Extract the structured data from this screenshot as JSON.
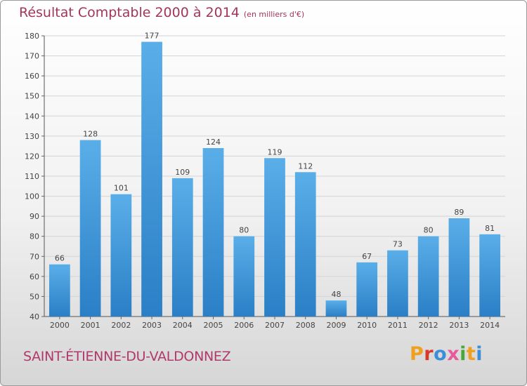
{
  "header": {
    "title": "Résultat Comptable 2000 à 2014",
    "units": "(en milliers d'€)"
  },
  "footer": {
    "place": "SAINT-ÉTIENNE-DU-VALDONNEZ",
    "logo": "Proxiti"
  },
  "colors": {
    "title": "#a3355a",
    "bar_top": "#5aaee8",
    "bar_bottom": "#2a7fc6",
    "logo": [
      "#f0a020",
      "#d83a2a",
      "#3a8fd8",
      "#e85a9a",
      "#4aa83a",
      "#f0a020",
      "#3a8fd8"
    ]
  },
  "chart_data": {
    "type": "bar",
    "title": "Résultat Comptable 2000 à 2014",
    "subtitle": "(en milliers d'€)",
    "xlabel": "",
    "ylabel": "",
    "categories": [
      "2000",
      "2001",
      "2002",
      "2003",
      "2004",
      "2005",
      "2006",
      "2007",
      "2008",
      "2009",
      "2010",
      "2011",
      "2012",
      "2013",
      "2014"
    ],
    "values": [
      66,
      128,
      101,
      177,
      109,
      124,
      80,
      119,
      112,
      48,
      67,
      73,
      80,
      89,
      81
    ],
    "ylim": [
      40,
      180
    ],
    "yticks": [
      40,
      50,
      60,
      70,
      80,
      90,
      100,
      110,
      120,
      130,
      140,
      150,
      160,
      170,
      180
    ],
    "grid": true,
    "data_labels": true
  }
}
